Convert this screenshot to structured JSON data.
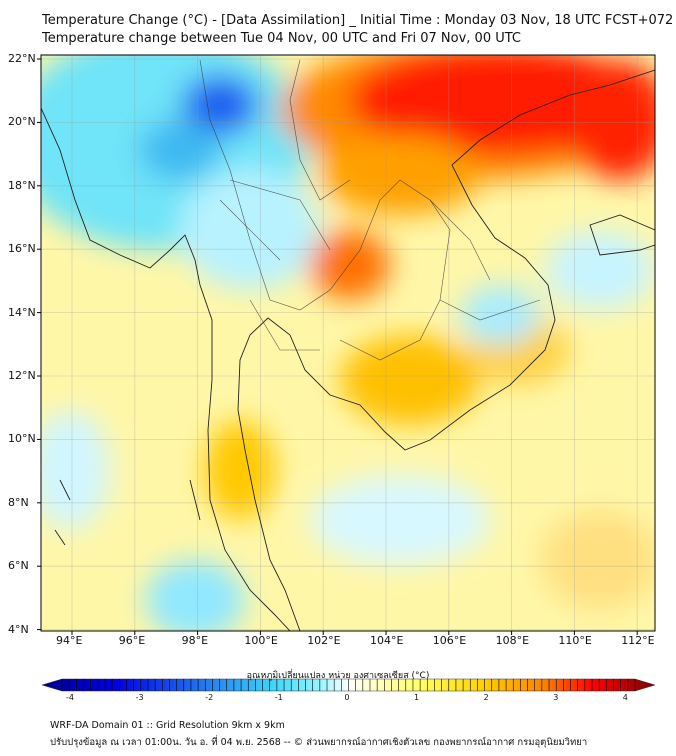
{
  "title": {
    "line1": "Temperature Change (°C) - [Data Assimilation] _ Initial Time : Monday 03 Nov, 18 UTC FCST+072",
    "line2": "Temperature change between Tue 04 Nov, 00 UTC and Fri 07 Nov, 00 UTC"
  },
  "map": {
    "lat_labels": [
      "22°N",
      "20°N",
      "18°N",
      "16°N",
      "14°N",
      "12°N",
      "10°N",
      "8°N",
      "6°N",
      "4°N"
    ],
    "lon_labels": [
      "94°E",
      "96°E",
      "98°E",
      "100°E",
      "102°E",
      "104°E",
      "106°E",
      "108°E",
      "110°E",
      "112°E"
    ],
    "field": "temperature change",
    "unit": "°C"
  },
  "colorbar": {
    "title": "อุณหภูมิเปลี่ยนแปลง หน่วย องศาเซลเซียส (°C)",
    "ticks": [
      "-4",
      "-3",
      "-2",
      "-1",
      "0",
      "1",
      "2",
      "3",
      "4"
    ],
    "min": -4,
    "max": 4,
    "colors": [
      "#00008c",
      "#0000e0",
      "#1e6cf0",
      "#40c8f0",
      "#70f0ff",
      "#ffffff",
      "#ffff60",
      "#ffd000",
      "#ff8000",
      "#ff0000",
      "#780000"
    ]
  },
  "footer": {
    "line1": "WRF-DA Domain 01 :: Grid Resolution 9km x 9km",
    "line2": "ปรับปรุงข้อมูล ณ เวลา 01:00น. วัน อ. ที่ 04 พ.ย. 2568 -- © ส่วนพยากรณ์อากาศเชิงตัวเลข กองพยากรณ์อากาศ กรมอุตุนิยมวิทยา"
  }
}
